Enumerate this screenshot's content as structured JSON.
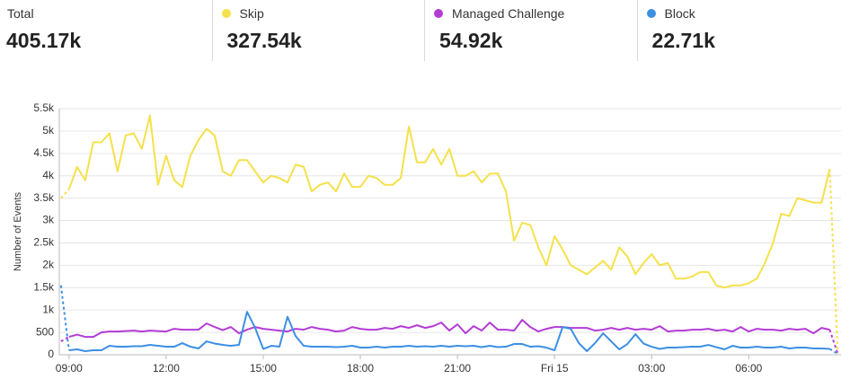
{
  "chart_data": {
    "type": "line",
    "total_label": "Total",
    "total": "405.17k",
    "y_label": "Number of Events",
    "x": [
      8.75,
      9,
      9.25,
      9.5,
      9.75,
      10,
      10.25,
      10.5,
      10.75,
      11,
      11.25,
      11.5,
      11.75,
      12,
      12.25,
      12.5,
      12.75,
      13,
      13.25,
      13.5,
      13.75,
      14,
      14.25,
      14.5,
      14.75,
      15,
      15.25,
      15.5,
      15.75,
      16,
      16.25,
      16.5,
      16.75,
      17,
      17.25,
      17.5,
      17.75,
      18,
      18.25,
      18.5,
      18.75,
      19,
      19.25,
      19.5,
      19.75,
      20,
      20.25,
      20.5,
      20.75,
      21,
      21.25,
      21.5,
      21.75,
      22,
      22.25,
      22.5,
      22.75,
      23,
      23.25,
      23.5,
      23.75,
      24,
      24.25,
      24.5,
      24.75,
      25,
      25.25,
      25.5,
      25.75,
      26,
      26.25,
      26.5,
      26.75,
      27,
      27.25,
      27.5,
      27.75,
      28,
      28.25,
      28.5,
      28.75,
      29,
      29.25,
      29.5,
      29.75,
      30,
      30.25,
      30.5,
      30.75,
      31,
      31.25,
      31.5,
      31.75,
      32,
      32.25,
      32.5,
      32.75
    ],
    "series": [
      {
        "name": "Skip",
        "total": "327.54k",
        "color": "#f5e14b",
        "values": [
          3500,
          3700,
          4200,
          3900,
          4750,
          4750,
          4950,
          4100,
          4900,
          4950,
          4600,
          5350,
          3800,
          4450,
          3900,
          3750,
          4450,
          4800,
          5050,
          4900,
          4100,
          4000,
          4350,
          4350,
          4100,
          3850,
          4000,
          3950,
          3850,
          4250,
          4200,
          3650,
          3800,
          3850,
          3650,
          4050,
          3750,
          3750,
          4000,
          3950,
          3800,
          3800,
          3950,
          5100,
          4300,
          4300,
          4600,
          4250,
          4600,
          4000,
          4000,
          4100,
          3850,
          4050,
          4050,
          3650,
          2550,
          2950,
          2900,
          2400,
          2000,
          2650,
          2350,
          2000,
          1900,
          1800,
          1950,
          2100,
          1900,
          2400,
          2200,
          1800,
          2050,
          2250,
          2000,
          2050,
          1700,
          1700,
          1750,
          1850,
          1850,
          1550,
          1500,
          1550,
          1550,
          1600,
          1700,
          2050,
          2500,
          3150,
          3100,
          3500,
          3450,
          3400,
          3400,
          4150,
          30
        ]
      },
      {
        "name": "Managed Challenge",
        "total": "54.92k",
        "color": "#b43bd6",
        "values": [
          300,
          400,
          450,
          400,
          400,
          500,
          520,
          520,
          530,
          540,
          520,
          540,
          530,
          520,
          580,
          560,
          560,
          560,
          700,
          620,
          550,
          620,
          480,
          560,
          620,
          580,
          560,
          540,
          520,
          580,
          560,
          620,
          580,
          560,
          520,
          540,
          620,
          580,
          560,
          560,
          600,
          580,
          640,
          600,
          660,
          600,
          640,
          720,
          540,
          680,
          480,
          640,
          540,
          720,
          560,
          560,
          540,
          780,
          620,
          520,
          580,
          620,
          620,
          600,
          600,
          600,
          540,
          560,
          600,
          560,
          600,
          560,
          580,
          560,
          640,
          520,
          540,
          540,
          560,
          560,
          580,
          540,
          560,
          520,
          620,
          520,
          580,
          560,
          560,
          540,
          580,
          560,
          580,
          480,
          600,
          560,
          20
        ]
      },
      {
        "name": "Block",
        "total": "22.71k",
        "color": "#3c8fe3",
        "values": [
          1550,
          100,
          120,
          80,
          100,
          100,
          200,
          180,
          180,
          190,
          190,
          220,
          200,
          180,
          180,
          260,
          180,
          140,
          300,
          250,
          220,
          200,
          220,
          960,
          600,
          130,
          200,
          180,
          850,
          420,
          200,
          180,
          180,
          180,
          170,
          180,
          200,
          160,
          160,
          180,
          160,
          180,
          180,
          200,
          180,
          190,
          180,
          200,
          180,
          200,
          190,
          200,
          170,
          200,
          170,
          180,
          240,
          240,
          180,
          190,
          160,
          100,
          620,
          580,
          260,
          80,
          260,
          480,
          300,
          120,
          240,
          460,
          250,
          180,
          130,
          160,
          160,
          170,
          180,
          180,
          220,
          170,
          120,
          200,
          160,
          160,
          180,
          160,
          160,
          180,
          140,
          160,
          160,
          140,
          140,
          130,
          20
        ]
      }
    ],
    "xlim": [
      8.7,
      32.85
    ],
    "xticks": [
      {
        "value": 9,
        "label": "09:00"
      },
      {
        "value": 12,
        "label": "12:00"
      },
      {
        "value": 15,
        "label": "15:00"
      },
      {
        "value": 18,
        "label": "18:00"
      },
      {
        "value": 21,
        "label": "21:00"
      },
      {
        "value": 24,
        "label": "Fri 15"
      },
      {
        "value": 27,
        "label": "03:00"
      },
      {
        "value": 30,
        "label": "06:00"
      }
    ],
    "ylim": [
      0,
      5500
    ],
    "yticks": [
      0,
      500,
      {
        "value": 1000,
        "label": "1k"
      },
      {
        "value": 1500,
        "label": "1.5k"
      },
      {
        "value": 2000,
        "label": "2k"
      },
      {
        "value": 2500,
        "label": "2.5k"
      },
      {
        "value": 3000,
        "label": "3k"
      },
      {
        "value": 3500,
        "label": "3.5k"
      },
      {
        "value": 4000,
        "label": "4k"
      },
      {
        "value": 4500,
        "label": "4.5k"
      },
      {
        "value": 5000,
        "label": "5k"
      },
      {
        "value": 5500,
        "label": "5.5k"
      }
    ],
    "grid": true
  }
}
